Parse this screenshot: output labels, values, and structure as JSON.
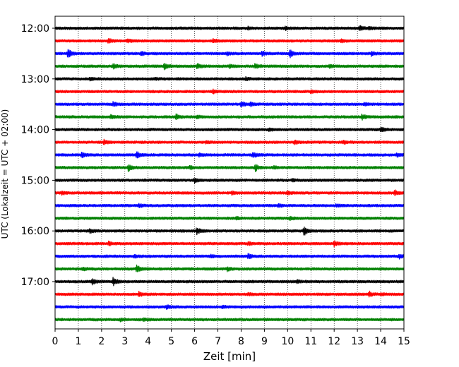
{
  "chart_data": {
    "type": "line",
    "xlabel": "Zeit  [min]",
    "ylabel": "UTC (Lokalzeit = UTC + 02:00)",
    "xlim": [
      0,
      15
    ],
    "xticks": [
      0,
      1,
      2,
      3,
      4,
      5,
      6,
      7,
      8,
      9,
      10,
      11,
      12,
      13,
      14,
      15
    ],
    "xtick_labels": [
      "0",
      "1",
      "2",
      "3",
      "4",
      "5",
      "6",
      "7",
      "8",
      "9",
      "10",
      "11",
      "12",
      "13",
      "14",
      "15"
    ],
    "y_ticks": [
      {
        "label": "12:00",
        "trace_index": 0
      },
      {
        "label": "13:00",
        "trace_index": 4
      },
      {
        "label": "14:00",
        "trace_index": 8
      },
      {
        "label": "15:00",
        "trace_index": 12
      },
      {
        "label": "16:00",
        "trace_index": 16
      },
      {
        "label": "17:00",
        "trace_index": 20
      }
    ],
    "grid": "x-dotted",
    "color_cycle": [
      "#000000",
      "#ff0000",
      "#0000ff",
      "#008000"
    ],
    "traces": [
      {
        "start": "12:00",
        "events": [
          {
            "t": 8.3,
            "a": 0.3
          },
          {
            "t": 9.9,
            "a": 0.4
          },
          {
            "t": 13.1,
            "a": 0.6
          },
          {
            "t": 13.5,
            "a": 0.4
          }
        ]
      },
      {
        "start": "12:15",
        "events": [
          {
            "t": 2.3,
            "a": 0.7
          },
          {
            "t": 3.1,
            "a": 0.5
          },
          {
            "t": 6.8,
            "a": 0.5
          },
          {
            "t": 12.3,
            "a": 0.5
          }
        ]
      },
      {
        "start": "12:30",
        "events": [
          {
            "t": 0.55,
            "a": 1.5
          },
          {
            "t": 3.7,
            "a": 0.6
          },
          {
            "t": 7.4,
            "a": 0.4
          },
          {
            "t": 8.9,
            "a": 0.6
          },
          {
            "t": 10.1,
            "a": 1.3
          },
          {
            "t": 13.6,
            "a": 0.6
          }
        ]
      },
      {
        "start": "12:45",
        "events": [
          {
            "t": 2.5,
            "a": 0.7
          },
          {
            "t": 4.7,
            "a": 1.0
          },
          {
            "t": 6.1,
            "a": 0.7
          },
          {
            "t": 7.5,
            "a": 0.4
          },
          {
            "t": 8.6,
            "a": 0.6
          },
          {
            "t": 11.8,
            "a": 0.5
          }
        ]
      },
      {
        "start": "13:00",
        "events": [
          {
            "t": 1.5,
            "a": 0.4
          },
          {
            "t": 4.3,
            "a": 0.3
          },
          {
            "t": 8.2,
            "a": 0.4
          }
        ]
      },
      {
        "start": "13:15",
        "events": [
          {
            "t": 6.8,
            "a": 0.6
          },
          {
            "t": 11.0,
            "a": 0.4
          }
        ]
      },
      {
        "start": "13:30",
        "events": [
          {
            "t": 2.5,
            "a": 0.6
          },
          {
            "t": 8.0,
            "a": 0.8
          },
          {
            "t": 8.4,
            "a": 0.6
          },
          {
            "t": 13.3,
            "a": 0.4
          }
        ]
      },
      {
        "start": "13:45",
        "events": [
          {
            "t": 2.4,
            "a": 0.5
          },
          {
            "t": 5.2,
            "a": 0.7
          },
          {
            "t": 6.1,
            "a": 0.4
          },
          {
            "t": 13.2,
            "a": 0.8
          }
        ]
      },
      {
        "start": "14:00",
        "events": [
          {
            "t": 9.2,
            "a": 0.4
          },
          {
            "t": 14.0,
            "a": 0.8
          }
        ]
      },
      {
        "start": "14:15",
        "events": [
          {
            "t": 2.1,
            "a": 0.8
          },
          {
            "t": 6.5,
            "a": 0.4
          },
          {
            "t": 10.3,
            "a": 0.6
          },
          {
            "t": 12.4,
            "a": 0.5
          }
        ]
      },
      {
        "start": "14:30",
        "events": [
          {
            "t": 1.15,
            "a": 0.8
          },
          {
            "t": 3.5,
            "a": 0.9
          },
          {
            "t": 6.2,
            "a": 0.4
          },
          {
            "t": 8.5,
            "a": 0.8
          },
          {
            "t": 14.7,
            "a": 0.4
          }
        ]
      },
      {
        "start": "14:45",
        "events": [
          {
            "t": 3.15,
            "a": 1.0
          },
          {
            "t": 5.8,
            "a": 0.5
          },
          {
            "t": 8.6,
            "a": 1.1
          },
          {
            "t": 9.4,
            "a": 0.4
          }
        ]
      },
      {
        "start": "15:00",
        "events": [
          {
            "t": 6.0,
            "a": 0.6
          },
          {
            "t": 10.2,
            "a": 0.4
          }
        ]
      },
      {
        "start": "15:15",
        "events": [
          {
            "t": 0.3,
            "a": 0.6
          },
          {
            "t": 7.6,
            "a": 0.4
          },
          {
            "t": 10.0,
            "a": 0.5
          },
          {
            "t": 14.6,
            "a": 0.8
          }
        ]
      },
      {
        "start": "15:30",
        "events": [
          {
            "t": 3.6,
            "a": 0.5
          },
          {
            "t": 9.6,
            "a": 0.4
          },
          {
            "t": 12.1,
            "a": 0.4
          }
        ]
      },
      {
        "start": "15:45",
        "events": [
          {
            "t": 7.8,
            "a": 0.4
          },
          {
            "t": 10.1,
            "a": 0.6
          }
        ]
      },
      {
        "start": "16:00",
        "events": [
          {
            "t": 1.5,
            "a": 0.6
          },
          {
            "t": 6.1,
            "a": 1.1
          },
          {
            "t": 10.7,
            "a": 1.2
          }
        ]
      },
      {
        "start": "16:15",
        "events": [
          {
            "t": 2.3,
            "a": 0.5
          },
          {
            "t": 8.3,
            "a": 0.4
          },
          {
            "t": 12.0,
            "a": 0.7
          }
        ]
      },
      {
        "start": "16:30",
        "events": [
          {
            "t": 3.4,
            "a": 0.4
          },
          {
            "t": 6.7,
            "a": 0.4
          },
          {
            "t": 8.3,
            "a": 0.8
          },
          {
            "t": 14.8,
            "a": 0.7
          }
        ]
      },
      {
        "start": "16:45",
        "events": [
          {
            "t": 1.2,
            "a": 0.5
          },
          {
            "t": 3.5,
            "a": 1.5
          },
          {
            "t": 7.4,
            "a": 0.5
          }
        ]
      },
      {
        "start": "17:00",
        "events": [
          {
            "t": 1.6,
            "a": 0.8
          },
          {
            "t": 2.5,
            "a": 1.2
          },
          {
            "t": 10.4,
            "a": 0.4
          }
        ]
      },
      {
        "start": "17:15",
        "events": [
          {
            "t": 3.6,
            "a": 0.6
          },
          {
            "t": 8.3,
            "a": 0.4
          },
          {
            "t": 13.5,
            "a": 0.8
          },
          {
            "t": 14.0,
            "a": 0.3
          }
        ]
      },
      {
        "start": "17:30",
        "events": [
          {
            "t": 4.8,
            "a": 0.7
          },
          {
            "t": 7.2,
            "a": 0.4
          }
        ]
      },
      {
        "start": "17:45",
        "events": [
          {
            "t": 2.8,
            "a": 0.4
          },
          {
            "t": 3.8,
            "a": 0.3
          }
        ]
      }
    ]
  }
}
